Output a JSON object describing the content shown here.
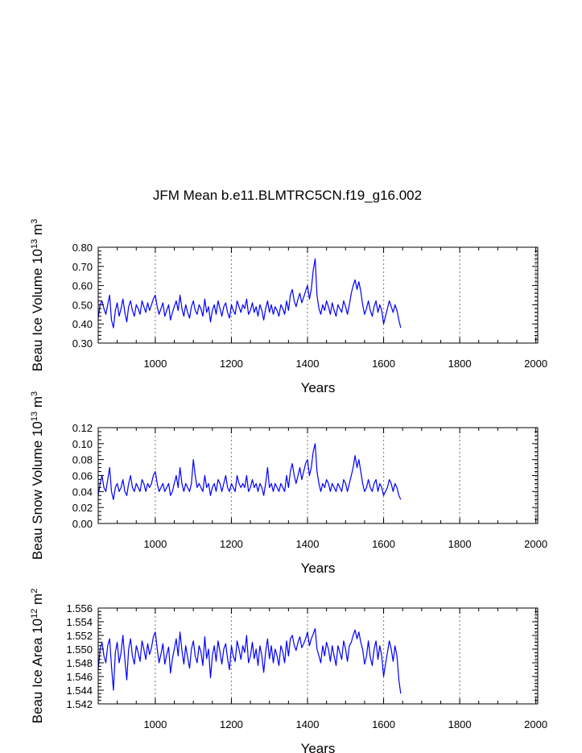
{
  "figure_title": "JFM Mean b.e11.BLMTRC5CN.f19_g16.002",
  "chart_data": [
    {
      "type": "line",
      "title": "",
      "xlabel": "Years",
      "ylabel": {
        "pre": "Beau Ice Volume 10",
        "sup": "13",
        "post": " m",
        "sup2": "3"
      },
      "xlim": [
        850,
        2005
      ],
      "ylim": [
        0.3,
        0.8
      ],
      "xticks": [
        1000,
        1200,
        1400,
        1600,
        1800,
        2000
      ],
      "xtick_labels": [
        "1000",
        "1200",
        "1400",
        "1600",
        "1800",
        "2000"
      ],
      "yticks": [
        0.3,
        0.4,
        0.5,
        0.6,
        0.7,
        0.8
      ],
      "ytick_labels": [
        "0.30",
        "0.40",
        "0.50",
        "0.60",
        "0.70",
        "0.80"
      ],
      "vertical_gridlines_at": [
        1000,
        1200,
        1400,
        1600,
        1800,
        2000
      ],
      "line_color": "#0000ff",
      "gridline_color": "#888888",
      "series": [
        {
          "name": "Beau Ice Volume",
          "x_start": 850,
          "x_step": 5,
          "values": [
            0.43,
            0.5,
            0.52,
            0.48,
            0.45,
            0.5,
            0.55,
            0.42,
            0.38,
            0.47,
            0.51,
            0.44,
            0.48,
            0.53,
            0.46,
            0.41,
            0.49,
            0.52,
            0.47,
            0.44,
            0.5,
            0.48,
            0.45,
            0.52,
            0.49,
            0.46,
            0.51,
            0.47,
            0.5,
            0.53,
            0.55,
            0.49,
            0.45,
            0.48,
            0.51,
            0.44,
            0.47,
            0.5,
            0.42,
            0.46,
            0.49,
            0.52,
            0.47,
            0.55,
            0.48,
            0.44,
            0.5,
            0.46,
            0.43,
            0.49,
            0.52,
            0.47,
            0.45,
            0.5,
            0.48,
            0.44,
            0.53,
            0.46,
            0.49,
            0.41,
            0.47,
            0.5,
            0.45,
            0.52,
            0.48,
            0.44,
            0.49,
            0.51,
            0.46,
            0.43,
            0.5,
            0.47,
            0.45,
            0.52,
            0.49,
            0.46,
            0.5,
            0.48,
            0.53,
            0.45,
            0.47,
            0.51,
            0.46,
            0.49,
            0.44,
            0.5,
            0.47,
            0.42,
            0.48,
            0.52,
            0.46,
            0.5,
            0.45,
            0.49,
            0.47,
            0.44,
            0.5,
            0.48,
            0.45,
            0.52,
            0.47,
            0.55,
            0.58,
            0.52,
            0.49,
            0.53,
            0.56,
            0.51,
            0.54,
            0.57,
            0.6,
            0.53,
            0.58,
            0.68,
            0.74,
            0.55,
            0.48,
            0.45,
            0.5,
            0.47,
            0.52,
            0.49,
            0.45,
            0.51,
            0.47,
            0.44,
            0.5,
            0.48,
            0.46,
            0.52,
            0.49,
            0.45,
            0.5,
            0.56,
            0.6,
            0.63,
            0.58,
            0.62,
            0.57,
            0.5,
            0.45,
            0.48,
            0.52,
            0.47,
            0.44,
            0.49,
            0.52,
            0.46,
            0.5,
            0.47,
            0.4,
            0.44,
            0.48,
            0.52,
            0.49,
            0.46,
            0.5,
            0.47,
            0.42,
            0.38
          ]
        }
      ]
    },
    {
      "type": "line",
      "title": "",
      "xlabel": "Years",
      "ylabel": {
        "pre": "Beau Snow Volume 10",
        "sup": "13",
        "post": " m",
        "sup2": "3"
      },
      "xlim": [
        850,
        2005
      ],
      "ylim": [
        0.0,
        0.12
      ],
      "xticks": [
        1000,
        1200,
        1400,
        1600,
        1800,
        2000
      ],
      "xtick_labels": [
        "1000",
        "1200",
        "1400",
        "1600",
        "1800",
        "2000"
      ],
      "yticks": [
        0.0,
        0.02,
        0.04,
        0.06,
        0.08,
        0.1,
        0.12
      ],
      "ytick_labels": [
        "0.00",
        "0.02",
        "0.04",
        "0.06",
        "0.08",
        "0.10",
        "0.12"
      ],
      "vertical_gridlines_at": [
        1000,
        1200,
        1400,
        1600,
        1800,
        2000
      ],
      "line_color": "#0000ff",
      "gridline_color": "#888888",
      "series": [
        {
          "name": "Beau Snow Volume",
          "x_start": 850,
          "x_step": 5,
          "values": [
            0.035,
            0.05,
            0.06,
            0.045,
            0.04,
            0.055,
            0.07,
            0.04,
            0.03,
            0.045,
            0.05,
            0.04,
            0.045,
            0.055,
            0.04,
            0.035,
            0.05,
            0.06,
            0.045,
            0.04,
            0.05,
            0.045,
            0.04,
            0.055,
            0.05,
            0.04,
            0.05,
            0.045,
            0.05,
            0.06,
            0.065,
            0.05,
            0.04,
            0.045,
            0.05,
            0.04,
            0.045,
            0.05,
            0.035,
            0.04,
            0.05,
            0.06,
            0.045,
            0.07,
            0.05,
            0.04,
            0.05,
            0.045,
            0.04,
            0.05,
            0.08,
            0.06,
            0.045,
            0.05,
            0.045,
            0.04,
            0.06,
            0.045,
            0.05,
            0.035,
            0.045,
            0.05,
            0.04,
            0.055,
            0.05,
            0.04,
            0.05,
            0.06,
            0.045,
            0.04,
            0.05,
            0.045,
            0.04,
            0.06,
            0.05,
            0.045,
            0.05,
            0.045,
            0.06,
            0.04,
            0.045,
            0.055,
            0.045,
            0.05,
            0.04,
            0.05,
            0.045,
            0.035,
            0.05,
            0.07,
            0.045,
            0.05,
            0.04,
            0.05,
            0.045,
            0.04,
            0.05,
            0.045,
            0.04,
            0.06,
            0.045,
            0.065,
            0.075,
            0.06,
            0.05,
            0.06,
            0.07,
            0.055,
            0.065,
            0.075,
            0.08,
            0.06,
            0.07,
            0.09,
            0.1,
            0.065,
            0.05,
            0.04,
            0.05,
            0.045,
            0.055,
            0.05,
            0.04,
            0.05,
            0.045,
            0.04,
            0.05,
            0.045,
            0.04,
            0.055,
            0.05,
            0.04,
            0.05,
            0.06,
            0.07,
            0.085,
            0.07,
            0.08,
            0.065,
            0.05,
            0.04,
            0.045,
            0.055,
            0.045,
            0.04,
            0.05,
            0.055,
            0.04,
            0.05,
            0.045,
            0.035,
            0.04,
            0.045,
            0.055,
            0.05,
            0.04,
            0.05,
            0.045,
            0.035,
            0.03
          ]
        }
      ]
    },
    {
      "type": "line",
      "title": "",
      "xlabel": "Years",
      "ylabel": {
        "pre": "Beau Ice Area 10",
        "sup": "12",
        "post": " m",
        "sup2": "2"
      },
      "xlim": [
        850,
        2005
      ],
      "ylim": [
        1.542,
        1.556
      ],
      "xticks": [
        1000,
        1200,
        1400,
        1600,
        1800,
        2000
      ],
      "xtick_labels": [
        "1000",
        "1200",
        "1400",
        "1600",
        "1800",
        "2000"
      ],
      "yticks": [
        1.542,
        1.544,
        1.546,
        1.548,
        1.55,
        1.552,
        1.554,
        1.556
      ],
      "ytick_labels": [
        "1.542",
        "1.544",
        "1.546",
        "1.548",
        "1.550",
        "1.552",
        "1.554",
        "1.556"
      ],
      "vertical_gridlines_at": [
        1000,
        1200,
        1400,
        1600,
        1800,
        2000
      ],
      "line_color": "#0000ff",
      "gridline_color": "#888888",
      "series": [
        {
          "name": "Beau Ice Area",
          "x_start": 850,
          "x_step": 5,
          "values": [
            1.547,
            1.55,
            1.551,
            1.549,
            1.548,
            1.5505,
            1.5515,
            1.5475,
            1.544,
            1.5495,
            1.551,
            1.548,
            1.5495,
            1.552,
            1.5485,
            1.5455,
            1.55,
            1.5515,
            1.549,
            1.5478,
            1.5505,
            1.5495,
            1.5482,
            1.5512,
            1.55,
            1.5485,
            1.5508,
            1.5492,
            1.5502,
            1.5518,
            1.5525,
            1.55,
            1.548,
            1.5493,
            1.5508,
            1.5478,
            1.5492,
            1.5503,
            1.5465,
            1.5486,
            1.55,
            1.5515,
            1.549,
            1.5525,
            1.5498,
            1.5478,
            1.5505,
            1.5488,
            1.5472,
            1.55,
            1.5512,
            1.549,
            1.548,
            1.5505,
            1.5496,
            1.5476,
            1.5518,
            1.5486,
            1.55,
            1.5458,
            1.549,
            1.5505,
            1.5482,
            1.5512,
            1.5496,
            1.5478,
            1.55,
            1.5508,
            1.5486,
            1.547,
            1.5505,
            1.549,
            1.5482,
            1.5512,
            1.55,
            1.5485,
            1.5505,
            1.5495,
            1.552,
            1.548,
            1.549,
            1.551,
            1.5486,
            1.55,
            1.5476,
            1.5505,
            1.549,
            1.5466,
            1.5496,
            1.5515,
            1.5486,
            1.5505,
            1.548,
            1.55,
            1.549,
            1.5476,
            1.5505,
            1.5496,
            1.548,
            1.5512,
            1.549,
            1.5515,
            1.552,
            1.5506,
            1.5498,
            1.551,
            1.5518,
            1.5502,
            1.5508,
            1.5515,
            1.5525,
            1.5505,
            1.5515,
            1.5522,
            1.553,
            1.55,
            1.549,
            1.548,
            1.5505,
            1.549,
            1.551,
            1.55,
            1.5482,
            1.5505,
            1.549,
            1.5476,
            1.5505,
            1.5495,
            1.5485,
            1.5512,
            1.55,
            1.5482,
            1.5505,
            1.551,
            1.552,
            1.5528,
            1.5515,
            1.5525,
            1.551,
            1.55,
            1.5478,
            1.549,
            1.5512,
            1.5488,
            1.5476,
            1.55,
            1.5512,
            1.5485,
            1.5505,
            1.549,
            1.546,
            1.5478,
            1.5495,
            1.5512,
            1.55,
            1.5482,
            1.5505,
            1.549,
            1.5455,
            1.5435
          ]
        }
      ]
    }
  ]
}
